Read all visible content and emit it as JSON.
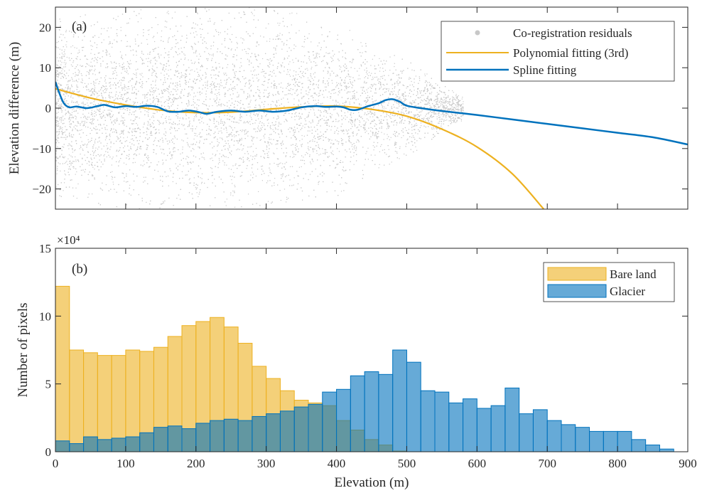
{
  "chart_data": [
    {
      "type": "scatter",
      "panel_label": "(a)",
      "xlabel": "",
      "ylabel": "Elevation difference (m)",
      "xlim": [
        0,
        900
      ],
      "ylim": [
        -25,
        25
      ],
      "xticks": [
        0,
        100,
        200,
        300,
        400,
        500,
        600,
        700,
        800,
        900
      ],
      "xtick_labels_shown": false,
      "yticks": [
        -20,
        -10,
        0,
        10,
        20
      ],
      "ytick_labels": [
        "−20",
        "−10",
        "0",
        "10",
        "20"
      ],
      "grid": false,
      "legend_position": "top-right",
      "legend": [
        "Co-registration residuals",
        "Polynomial fitting (3rd)",
        "Spline fitting"
      ],
      "series": [
        {
          "name": "Co-registration residuals",
          "kind": "point-cloud",
          "color": "#c8c8c8",
          "x_range": [
            0,
            580
          ],
          "approx_y_spread_by_x": [
            [
              0,
              22
            ],
            [
              100,
              25
            ],
            [
              200,
              25
            ],
            [
              300,
              25
            ],
            [
              400,
              22
            ],
            [
              450,
              17
            ],
            [
              500,
              12
            ],
            [
              550,
              6
            ],
            [
              580,
              3
            ]
          ]
        },
        {
          "name": "Polynomial fitting (3rd)",
          "kind": "line",
          "color": "#EDB120",
          "points": [
            [
              0,
              4.8
            ],
            [
              50,
              2.5
            ],
            [
              100,
              0.8
            ],
            [
              150,
              -0.5
            ],
            [
              200,
              -1.1
            ],
            [
              250,
              -1.0
            ],
            [
              300,
              -0.3
            ],
            [
              350,
              0.3
            ],
            [
              400,
              0.5
            ],
            [
              450,
              -0.3
            ],
            [
              500,
              -2.0
            ],
            [
              550,
              -5.2
            ],
            [
              600,
              -9.6
            ],
            [
              650,
              -16.2
            ],
            [
              695,
              -25.0
            ]
          ]
        },
        {
          "name": "Spline fitting",
          "kind": "line",
          "color": "#0072BD",
          "points": [
            [
              0,
              6.5
            ],
            [
              5,
              4.0
            ],
            [
              12,
              1.2
            ],
            [
              20,
              0.2
            ],
            [
              30,
              0.4
            ],
            [
              45,
              0.0
            ],
            [
              60,
              0.5
            ],
            [
              70,
              0.8
            ],
            [
              85,
              0.2
            ],
            [
              100,
              0.5
            ],
            [
              115,
              0.3
            ],
            [
              130,
              0.6
            ],
            [
              145,
              0.3
            ],
            [
              160,
              -0.8
            ],
            [
              175,
              -0.9
            ],
            [
              190,
              -0.6
            ],
            [
              205,
              -1.0
            ],
            [
              215,
              -1.4
            ],
            [
              230,
              -0.9
            ],
            [
              250,
              -0.6
            ],
            [
              270,
              -0.9
            ],
            [
              290,
              -0.6
            ],
            [
              310,
              -0.9
            ],
            [
              330,
              -0.6
            ],
            [
              350,
              0.2
            ],
            [
              370,
              0.5
            ],
            [
              385,
              0.3
            ],
            [
              400,
              0.4
            ],
            [
              410,
              0.2
            ],
            [
              420,
              -0.4
            ],
            [
              430,
              -0.4
            ],
            [
              445,
              0.5
            ],
            [
              460,
              1.2
            ],
            [
              470,
              2.0
            ],
            [
              480,
              2.2
            ],
            [
              490,
              1.6
            ],
            [
              500,
              0.6
            ],
            [
              520,
              0.0
            ],
            [
              550,
              -0.7
            ],
            [
              600,
              -1.7
            ],
            [
              650,
              -2.8
            ],
            [
              700,
              -3.9
            ],
            [
              750,
              -5.0
            ],
            [
              800,
              -6.1
            ],
            [
              850,
              -7.2
            ],
            [
              900,
              -9.0
            ]
          ]
        }
      ]
    },
    {
      "type": "bar",
      "subtype": "histogram",
      "panel_label": "(b)",
      "xlabel": "Elevation  (m)",
      "ylabel": "Number of pixels",
      "y_multiplier": "×10⁴",
      "xlim": [
        0,
        900
      ],
      "ylim": [
        0,
        15
      ],
      "xticks": [
        0,
        100,
        200,
        300,
        400,
        500,
        600,
        700,
        800,
        900
      ],
      "xtick_labels": [
        "0",
        "100",
        "200",
        "300",
        "400",
        "500",
        "600",
        "700",
        "800",
        "900"
      ],
      "yticks": [
        0,
        5,
        10,
        15
      ],
      "ytick_labels": [
        "0",
        "5",
        "10",
        "15"
      ],
      "grid": false,
      "legend_position": "top-right",
      "legend": [
        "Bare land",
        "Glacier"
      ],
      "bin_width": 20,
      "bin_edges_start": 0,
      "series": [
        {
          "name": "Bare land",
          "color": "#EDB120",
          "values": [
            12.2,
            7.5,
            7.3,
            7.1,
            7.1,
            7.5,
            7.4,
            7.7,
            8.5,
            9.3,
            9.6,
            9.9,
            9.2,
            8.0,
            6.3,
            5.4,
            4.5,
            3.8,
            3.6,
            3.4,
            2.3,
            1.6,
            0.9,
            0.5,
            0.05,
            0,
            0,
            0,
            0,
            0,
            0,
            0,
            0,
            0,
            0,
            0,
            0,
            0,
            0,
            0,
            0,
            0,
            0,
            0,
            0
          ]
        },
        {
          "name": "Glacier",
          "color": "#0072BD",
          "values": [
            0.8,
            0.6,
            1.1,
            0.9,
            1.0,
            1.1,
            1.4,
            1.8,
            1.9,
            1.7,
            2.1,
            2.3,
            2.4,
            2.3,
            2.6,
            2.8,
            3.0,
            3.3,
            3.5,
            4.4,
            4.6,
            5.6,
            5.9,
            5.7,
            7.5,
            6.6,
            4.5,
            4.4,
            3.6,
            3.9,
            3.2,
            3.4,
            4.7,
            2.8,
            3.1,
            2.3,
            2.0,
            1.8,
            1.5,
            1.5,
            1.5,
            0.9,
            0.5,
            0.2,
            0
          ]
        }
      ]
    }
  ]
}
